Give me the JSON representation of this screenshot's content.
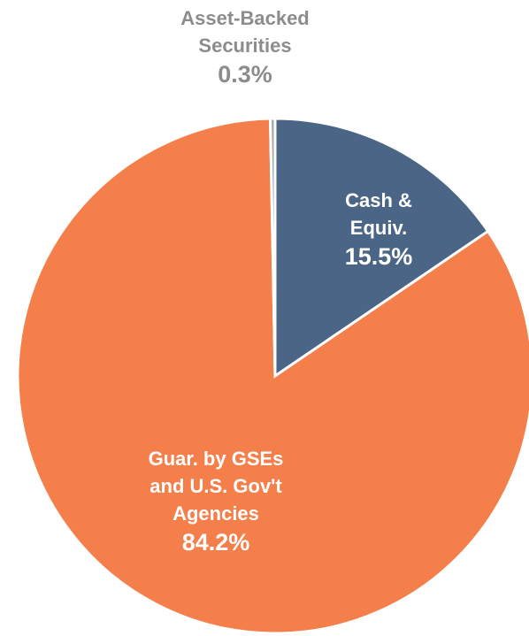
{
  "chart_data": {
    "type": "pie",
    "categories": [
      [
        "Cash &",
        "Equiv."
      ],
      [
        "Guar. by GSEs",
        "and U.S. Gov't",
        "Agencies"
      ],
      [
        "Asset-Backed",
        "Securities"
      ]
    ],
    "values": [
      15.5,
      84.2,
      0.3
    ],
    "value_labels": [
      "15.5%",
      "84.2%",
      "0.3%"
    ],
    "colors": [
      "#4a6585",
      "#f47f4b",
      "#9fa8b3"
    ],
    "label_colors": [
      "#ffffff",
      "#ffffff",
      "#8c8c8c"
    ]
  }
}
